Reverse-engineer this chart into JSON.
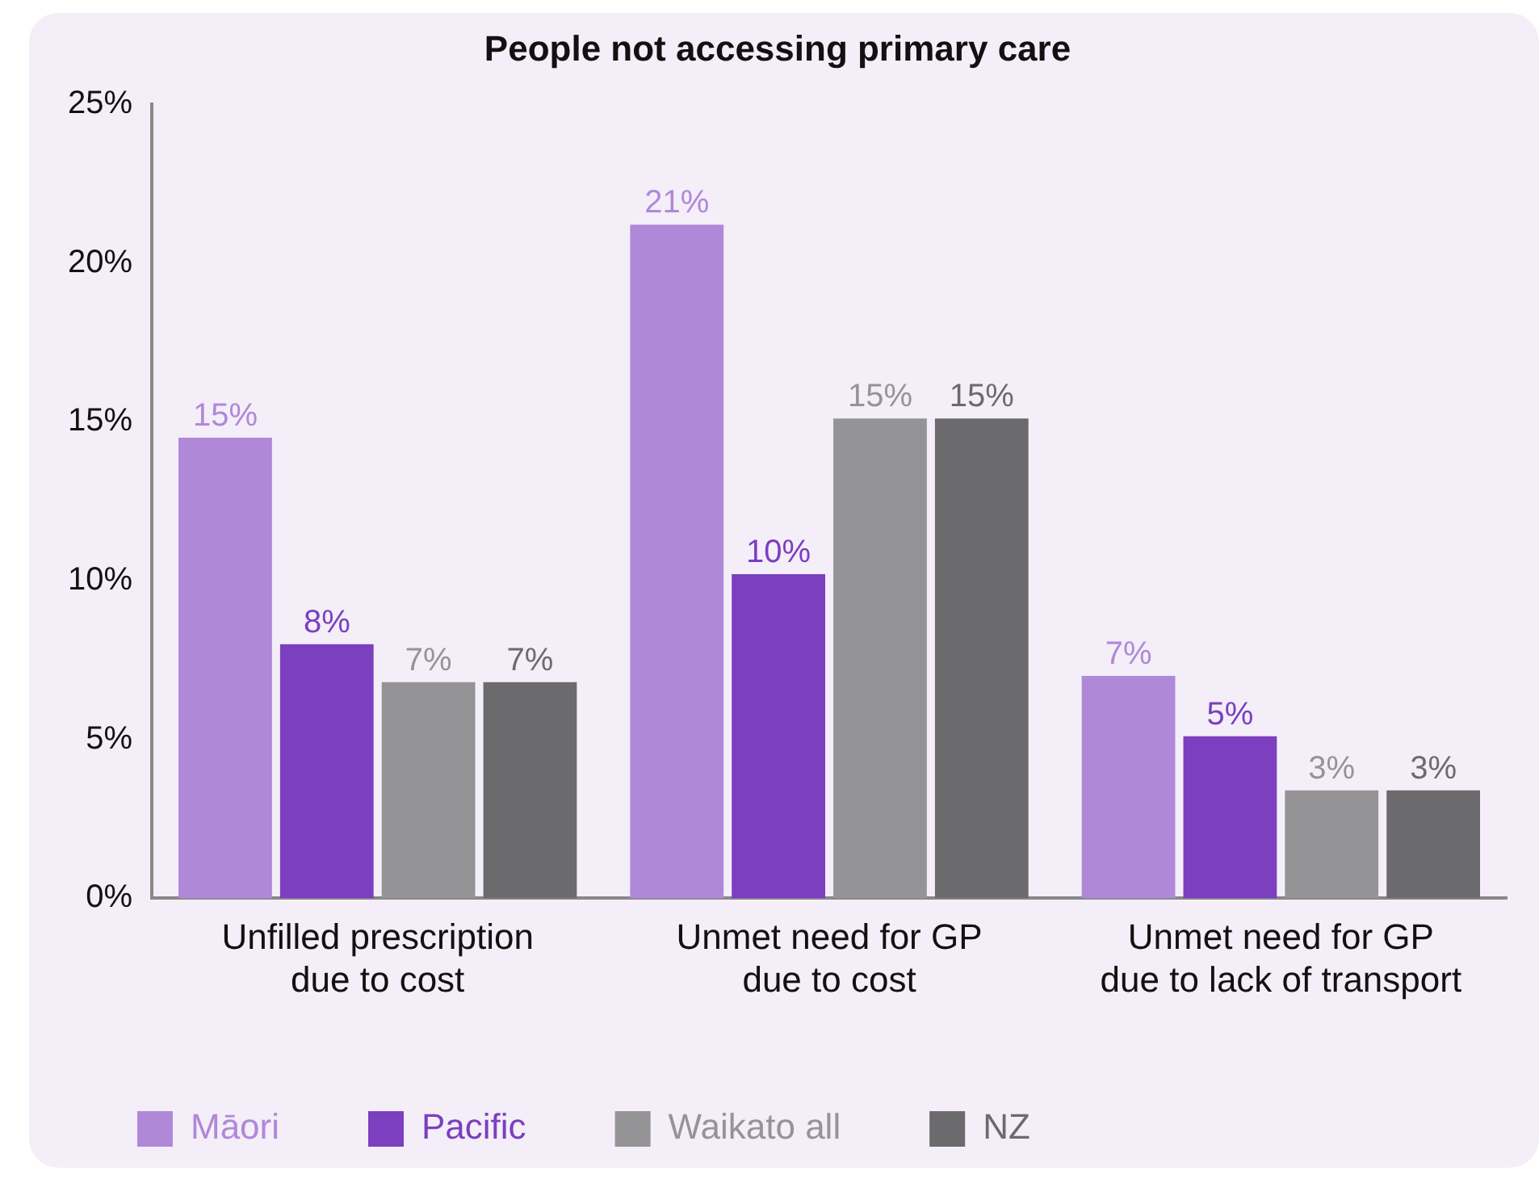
{
  "chart_data": {
    "type": "bar",
    "title": "People not accessing primary care",
    "categories": [
      "Unfilled prescription\ndue to cost",
      "Unmet need for GP\ndue to cost",
      "Unmet need for GP\ndue to lack of transport"
    ],
    "series": [
      {
        "name": "Māori",
        "color": "#b088d8",
        "values": [
          14.5,
          21.2,
          7.0
        ],
        "value_labels": [
          "15%",
          "21%",
          "7%"
        ]
      },
      {
        "name": "Pacific",
        "color": "#7b3fbf",
        "values": [
          8.0,
          10.2,
          5.1
        ],
        "value_labels": [
          "8%",
          "10%",
          "5%"
        ]
      },
      {
        "name": "Waikato all",
        "color": "#949497",
        "values": [
          6.8,
          15.1,
          3.4
        ],
        "value_labels": [
          "7%",
          "15%",
          "3%"
        ]
      },
      {
        "name": "NZ",
        "color": "#6b6b6e",
        "values": [
          6.8,
          15.1,
          3.4
        ],
        "value_labels": [
          "7%",
          "15%",
          "3%"
        ]
      }
    ],
    "ylim": [
      0,
      25
    ],
    "yticks": [
      {
        "value": 0,
        "label": "0%"
      },
      {
        "value": 5,
        "label": "5%"
      },
      {
        "value": 10,
        "label": "10%"
      },
      {
        "value": 15,
        "label": "15%"
      },
      {
        "value": 20,
        "label": "20%"
      },
      {
        "value": 25,
        "label": "25%"
      }
    ],
    "grid": false,
    "legend": "bottom left"
  }
}
